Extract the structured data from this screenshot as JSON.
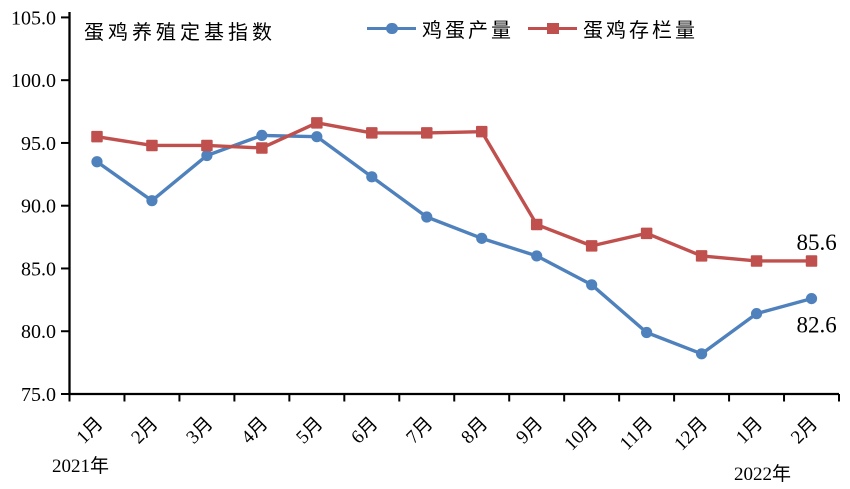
{
  "chart_data": {
    "type": "line",
    "title": "蛋鸡养殖定基指数",
    "categories": [
      "1月",
      "2月",
      "3月",
      "4月",
      "5月",
      "6月",
      "7月",
      "8月",
      "9月",
      "10月",
      "11月",
      "12月",
      "1月",
      "2月"
    ],
    "x_year_labels": [
      {
        "text": "2021年",
        "position": "first-category"
      },
      {
        "text": "2022年",
        "position": "last-categories"
      }
    ],
    "ylim": [
      75,
      105
    ],
    "ytick_step": 5,
    "yticks": [
      {
        "value": 105,
        "label": "105.0"
      },
      {
        "value": 100,
        "label": "100.0"
      },
      {
        "value": 95,
        "label": "95.0"
      },
      {
        "value": 90,
        "label": "90.0"
      },
      {
        "value": 85,
        "label": "85.0"
      },
      {
        "value": 80,
        "label": "80.0"
      },
      {
        "value": 75,
        "label": "75.0"
      }
    ],
    "grid": false,
    "legend_position": "top",
    "axis_color": "#000000",
    "series": [
      {
        "name": "鸡蛋产量",
        "marker": "circle",
        "color": "#4F81BD",
        "values": [
          93.5,
          90.4,
          94.0,
          95.6,
          95.5,
          92.3,
          89.1,
          87.4,
          86.0,
          83.7,
          79.9,
          78.2,
          81.4,
          82.6
        ],
        "end_label": "82.6",
        "end_label_side": "below"
      },
      {
        "name": "蛋鸡存栏量",
        "marker": "square",
        "color": "#C0504D",
        "values": [
          95.5,
          94.8,
          94.8,
          94.6,
          96.6,
          95.8,
          95.8,
          95.9,
          88.5,
          86.8,
          87.8,
          86.0,
          85.6,
          85.6
        ],
        "end_label": "85.6",
        "end_label_side": "above"
      }
    ]
  }
}
